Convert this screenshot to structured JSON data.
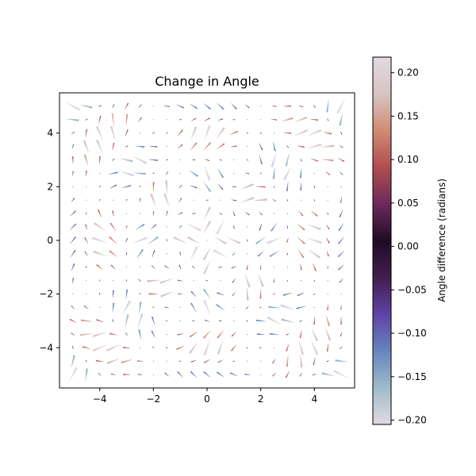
{
  "chart_data": {
    "type": "quiver",
    "title": "Change in Angle",
    "xlabel": "",
    "ylabel": "",
    "xlim": [
      -5.5,
      5.5
    ],
    "ylim": [
      -5.5,
      5.5
    ],
    "xticks": [
      -4,
      -2,
      0,
      2,
      4
    ],
    "yticks": [
      -4,
      -2,
      0,
      2,
      4
    ],
    "grid": false,
    "field": {
      "description_of_layout": "21 x 21 grid",
      "x_range": [
        -5,
        5
      ],
      "y_range": [
        -5,
        5
      ],
      "n": 21
    },
    "colorbar": {
      "label": "Angle difference (radians)",
      "range": [
        -0.205,
        0.218
      ],
      "ticks": [
        -0.2,
        -0.15,
        -0.1,
        -0.05,
        0.0,
        0.05,
        0.1,
        0.15,
        0.2
      ],
      "tick_labels": [
        "−0.20",
        "−0.15",
        "−0.10",
        "−0.05",
        "0.00",
        "0.05",
        "0.10",
        "0.15",
        "0.20"
      ],
      "colormap": "twilight",
      "colors": [
        "#e2d9e2",
        "#9ebbc9",
        "#6785be",
        "#5e43a5",
        "#421e4f",
        "#1e0c25",
        "#6d2a5b",
        "#b04d4e",
        "#d08b73",
        "#d7c4c3",
        "#e2d9e2"
      ]
    }
  }
}
